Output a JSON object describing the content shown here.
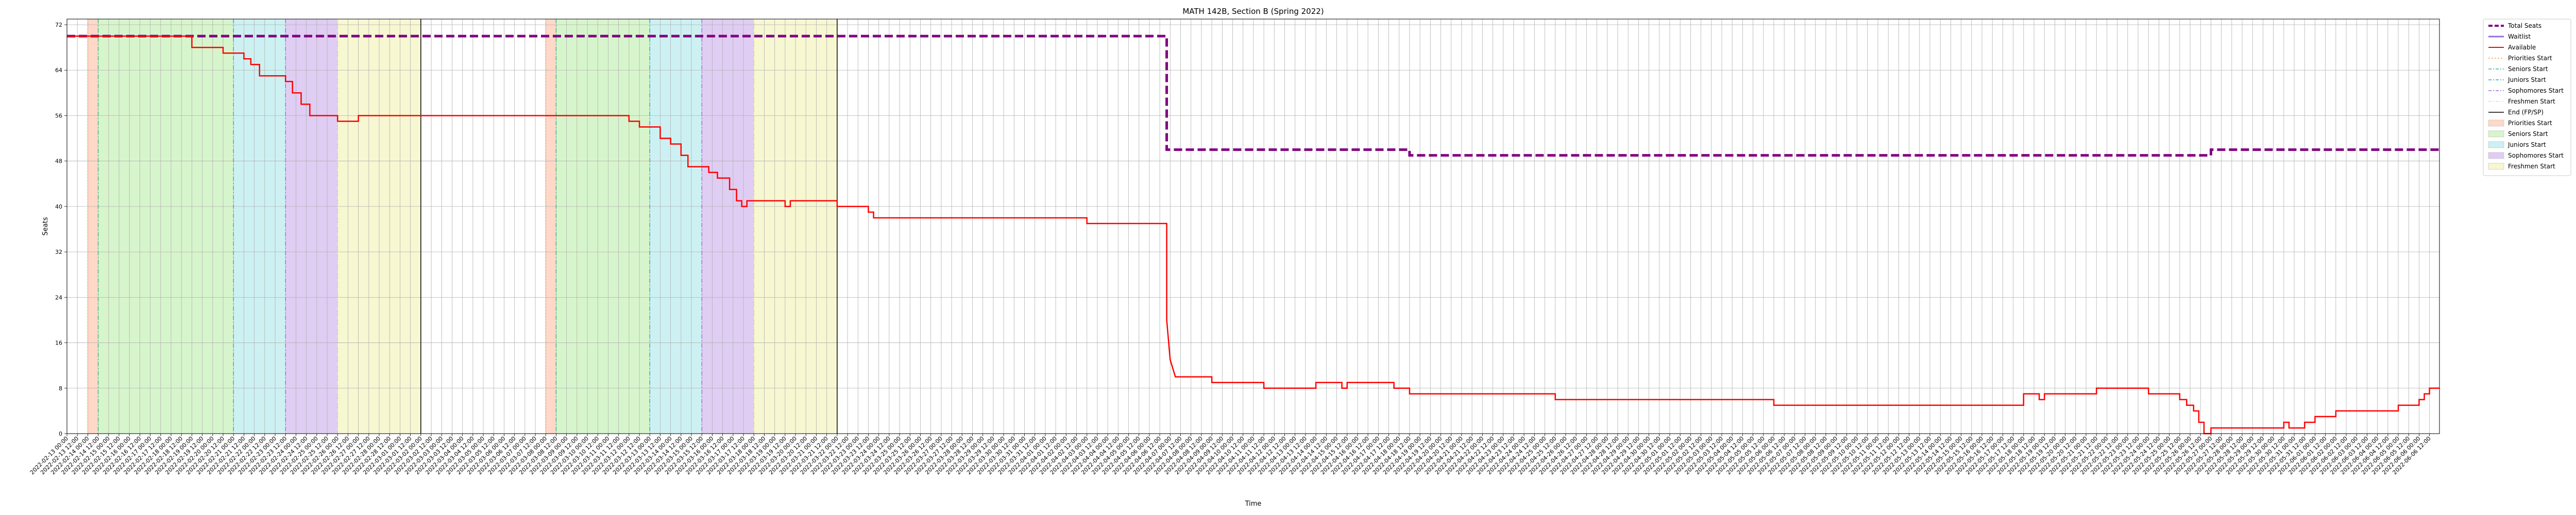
{
  "chart_data": {
    "type": "line",
    "title": "MATH 142B, Section B (Spring 2022)",
    "xlabel": "Time",
    "ylabel": "Seats",
    "ylim": [
      0,
      73
    ],
    "yticks": [
      0,
      8,
      16,
      24,
      32,
      40,
      48,
      56,
      64,
      72
    ],
    "x_ticks_first": "2022-02-13T00:00:00",
    "x_ticks_last": "2022-06-06T23:30:00",
    "grid": true,
    "legend_placement": "outside-top-right",
    "colors": {
      "total": "#800080",
      "waitlist": "#9370db",
      "available": "#ff0000",
      "priorities_line": "#f4a460",
      "seniors_line": "#3cb371",
      "juniors_line": "#20b2aa",
      "sophomores_line": "#9370db",
      "freshmen_line": "#f0e68c",
      "end_line": "#000000",
      "priorities_fill": "#ffd8c8",
      "seniors_fill": "#d7f5cc",
      "juniors_fill": "#cdf1f3",
      "sophomores_fill": "#e0cdf3",
      "freshmen_fill": "#f7f7d2"
    },
    "legend": [
      {
        "label": "Total Seats",
        "kind": "line",
        "color": "#800080",
        "dash": "8,4",
        "width": 4
      },
      {
        "label": "Waitlist",
        "kind": "line",
        "color": "#9370db",
        "dash": "",
        "width": 3
      },
      {
        "label": "Available",
        "kind": "line",
        "color": "#ff0000",
        "dash": "",
        "width": 2
      },
      {
        "label": "Priorities Start",
        "kind": "line",
        "color": "#f4a460",
        "dash": "3,3",
        "width": 1.5
      },
      {
        "label": "Seniors Start",
        "kind": "line",
        "color": "#3cb371",
        "dash": "6,3,2,3",
        "width": 1.5
      },
      {
        "label": "Juniors Start",
        "kind": "line",
        "color": "#20b2aa",
        "dash": "6,3,2,3",
        "width": 1.5
      },
      {
        "label": "Sophomores Start",
        "kind": "line",
        "color": "#9370db",
        "dash": "6,3,2,3",
        "width": 1.5
      },
      {
        "label": "Freshmen Start",
        "kind": "line",
        "color": "#f0e68c",
        "dash": "6,3,2,3",
        "width": 1.5
      },
      {
        "label": "End (FP/SP)",
        "kind": "line",
        "color": "#000000",
        "dash": "",
        "width": 1.5
      },
      {
        "label": "Priorities Start",
        "kind": "patch",
        "color": "#ffd8c8"
      },
      {
        "label": "Seniors Start",
        "kind": "patch",
        "color": "#d7f5cc"
      },
      {
        "label": "Juniors Start",
        "kind": "patch",
        "color": "#cdf1f3"
      },
      {
        "label": "Sophomores Start",
        "kind": "patch",
        "color": "#e0cdf3"
      },
      {
        "label": "Freshmen Start",
        "kind": "patch",
        "color": "#f7f7d2"
      }
    ],
    "passes": [
      {
        "priorities": "2022-02-14T00:00:00",
        "seniors": "2022-02-14T12:00:00",
        "juniors": "2022-02-21T00:00:00",
        "sophomores": "2022-02-23T12:00:00",
        "freshmen": "2022-02-26T00:00:00",
        "end": "2022-03-02T00:00:00"
      },
      {
        "priorities": "2022-03-08T00:00:00",
        "seniors": "2022-03-08T12:00:00",
        "juniors": "2022-03-13T00:00:00",
        "sophomores": "2022-03-15T12:00:00",
        "freshmen": "2022-03-18T00:00:00",
        "end": "2022-03-22T00:00:00"
      }
    ],
    "series": [
      {
        "name": "Total Seats",
        "step": true,
        "points": [
          [
            "2022-02-13T00:00:00",
            70
          ],
          [
            "2022-04-06T20:00:00",
            70
          ],
          [
            "2022-04-06T20:00:00",
            50
          ],
          [
            "2022-04-18T12:00:00",
            50
          ],
          [
            "2022-04-18T12:00:00",
            49
          ],
          [
            "2022-05-27T00:00:00",
            49
          ],
          [
            "2022-05-27T00:00:00",
            50
          ],
          [
            "2022-06-06T23:30:00",
            50
          ]
        ]
      },
      {
        "name": "Available",
        "step": true,
        "points": [
          [
            "2022-02-13T00:00:00",
            70
          ],
          [
            "2022-02-19T00:00:00",
            70
          ],
          [
            "2022-02-19T00:00:00",
            68
          ],
          [
            "2022-02-20T12:00:00",
            68
          ],
          [
            "2022-02-20T12:00:00",
            67
          ],
          [
            "2022-02-21T12:00:00",
            67
          ],
          [
            "2022-02-21T12:00:00",
            66
          ],
          [
            "2022-02-21T20:00:00",
            66
          ],
          [
            "2022-02-21T20:00:00",
            65
          ],
          [
            "2022-02-22T06:00:00",
            65
          ],
          [
            "2022-02-22T06:00:00",
            63
          ],
          [
            "2022-02-23T12:00:00",
            63
          ],
          [
            "2022-02-23T12:00:00",
            62
          ],
          [
            "2022-02-23T20:00:00",
            62
          ],
          [
            "2022-02-23T20:00:00",
            60
          ],
          [
            "2022-02-24T06:00:00",
            60
          ],
          [
            "2022-02-24T06:00:00",
            58
          ],
          [
            "2022-02-24T16:00:00",
            58
          ],
          [
            "2022-02-24T16:00:00",
            56
          ],
          [
            "2022-02-26T00:00:00",
            56
          ],
          [
            "2022-02-26T00:00:00",
            55
          ],
          [
            "2022-02-27T00:00:00",
            55
          ],
          [
            "2022-02-27T00:00:00",
            56
          ],
          [
            "2022-03-12T00:00:00",
            56
          ],
          [
            "2022-03-12T00:00:00",
            55
          ],
          [
            "2022-03-12T12:00:00",
            55
          ],
          [
            "2022-03-12T12:00:00",
            54
          ],
          [
            "2022-03-13T12:00:00",
            54
          ],
          [
            "2022-03-13T12:00:00",
            52
          ],
          [
            "2022-03-14T00:00:00",
            52
          ],
          [
            "2022-03-14T00:00:00",
            51
          ],
          [
            "2022-03-14T12:00:00",
            51
          ],
          [
            "2022-03-14T12:00:00",
            49
          ],
          [
            "2022-03-14T20:00:00",
            49
          ],
          [
            "2022-03-14T20:00:00",
            47
          ],
          [
            "2022-03-15T20:00:00",
            47
          ],
          [
            "2022-03-15T20:00:00",
            46
          ],
          [
            "2022-03-16T06:00:00",
            46
          ],
          [
            "2022-03-16T06:00:00",
            45
          ],
          [
            "2022-03-16T20:00:00",
            45
          ],
          [
            "2022-03-16T20:00:00",
            43
          ],
          [
            "2022-03-17T04:00:00",
            43
          ],
          [
            "2022-03-17T04:00:00",
            41
          ],
          [
            "2022-03-17T10:00:00",
            41
          ],
          [
            "2022-03-17T10:00:00",
            40
          ],
          [
            "2022-03-17T16:00:00",
            40
          ],
          [
            "2022-03-17T16:00:00",
            41
          ],
          [
            "2022-03-19T12:00:00",
            41
          ],
          [
            "2022-03-19T12:00:00",
            40
          ],
          [
            "2022-03-19T18:00:00",
            40
          ],
          [
            "2022-03-19T18:00:00",
            41
          ],
          [
            "2022-03-22T00:00:00",
            41
          ],
          [
            "2022-03-22T00:00:00",
            40
          ],
          [
            "2022-03-23T12:00:00",
            40
          ],
          [
            "2022-03-23T12:00:00",
            39
          ],
          [
            "2022-03-23T18:00:00",
            39
          ],
          [
            "2022-03-23T18:00:00",
            38
          ],
          [
            "2022-04-03T00:00:00",
            38
          ],
          [
            "2022-04-03T00:00:00",
            37
          ],
          [
            "2022-04-06T20:00:00",
            37
          ],
          [
            "2022-04-06T20:00:00",
            20
          ],
          [
            "2022-04-07T00:00:00",
            13
          ],
          [
            "2022-04-07T06:00:00",
            10
          ],
          [
            "2022-04-09T00:00:00",
            10
          ],
          [
            "2022-04-09T00:00:00",
            9
          ],
          [
            "2022-04-11T12:00:00",
            9
          ],
          [
            "2022-04-11T12:00:00",
            8
          ],
          [
            "2022-04-14T00:00:00",
            8
          ],
          [
            "2022-04-14T00:00:00",
            9
          ],
          [
            "2022-04-15T06:00:00",
            9
          ],
          [
            "2022-04-15T06:00:00",
            8
          ],
          [
            "2022-04-15T12:00:00",
            8
          ],
          [
            "2022-04-15T12:00:00",
            9
          ],
          [
            "2022-04-17T18:00:00",
            9
          ],
          [
            "2022-04-17T18:00:00",
            8
          ],
          [
            "2022-04-18T12:00:00",
            8
          ],
          [
            "2022-04-18T12:00:00",
            7
          ],
          [
            "2022-04-25T12:00:00",
            7
          ],
          [
            "2022-04-25T12:00:00",
            6
          ],
          [
            "2022-05-06T00:00:00",
            6
          ],
          [
            "2022-05-06T00:00:00",
            5
          ],
          [
            "2022-05-18T00:00:00",
            5
          ],
          [
            "2022-05-18T00:00:00",
            7
          ],
          [
            "2022-05-18T18:00:00",
            7
          ],
          [
            "2022-05-18T18:00:00",
            6
          ],
          [
            "2022-05-19T00:00:00",
            6
          ],
          [
            "2022-05-19T00:00:00",
            7
          ],
          [
            "2022-05-21T12:00:00",
            7
          ],
          [
            "2022-05-21T12:00:00",
            8
          ],
          [
            "2022-05-24T00:00:00",
            8
          ],
          [
            "2022-05-24T00:00:00",
            7
          ],
          [
            "2022-05-25T12:00:00",
            7
          ],
          [
            "2022-05-25T12:00:00",
            6
          ],
          [
            "2022-05-25T20:00:00",
            6
          ],
          [
            "2022-05-25T20:00:00",
            5
          ],
          [
            "2022-05-26T04:00:00",
            5
          ],
          [
            "2022-05-26T04:00:00",
            4
          ],
          [
            "2022-05-26T10:00:00",
            4
          ],
          [
            "2022-05-26T10:00:00",
            2
          ],
          [
            "2022-05-26T16:00:00",
            2
          ],
          [
            "2022-05-26T16:00:00",
            0
          ],
          [
            "2022-05-27T00:00:00",
            0
          ],
          [
            "2022-05-27T00:00:00",
            1
          ],
          [
            "2022-05-30T12:00:00",
            1
          ],
          [
            "2022-05-30T12:00:00",
            2
          ],
          [
            "2022-05-30T18:00:00",
            2
          ],
          [
            "2022-05-30T18:00:00",
            1
          ],
          [
            "2022-05-31T12:00:00",
            1
          ],
          [
            "2022-05-31T12:00:00",
            2
          ],
          [
            "2022-06-01T00:00:00",
            2
          ],
          [
            "2022-06-01T00:00:00",
            3
          ],
          [
            "2022-06-02T00:00:00",
            3
          ],
          [
            "2022-06-02T00:00:00",
            4
          ],
          [
            "2022-06-05T00:00:00",
            4
          ],
          [
            "2022-06-05T00:00:00",
            5
          ],
          [
            "2022-06-06T00:00:00",
            5
          ],
          [
            "2022-06-06T00:00:00",
            6
          ],
          [
            "2022-06-06T06:00:00",
            6
          ],
          [
            "2022-06-06T06:00:00",
            7
          ],
          [
            "2022-06-06T12:00:00",
            7
          ],
          [
            "2022-06-06T12:00:00",
            8
          ],
          [
            "2022-06-06T23:30:00",
            8
          ]
        ]
      }
    ]
  }
}
